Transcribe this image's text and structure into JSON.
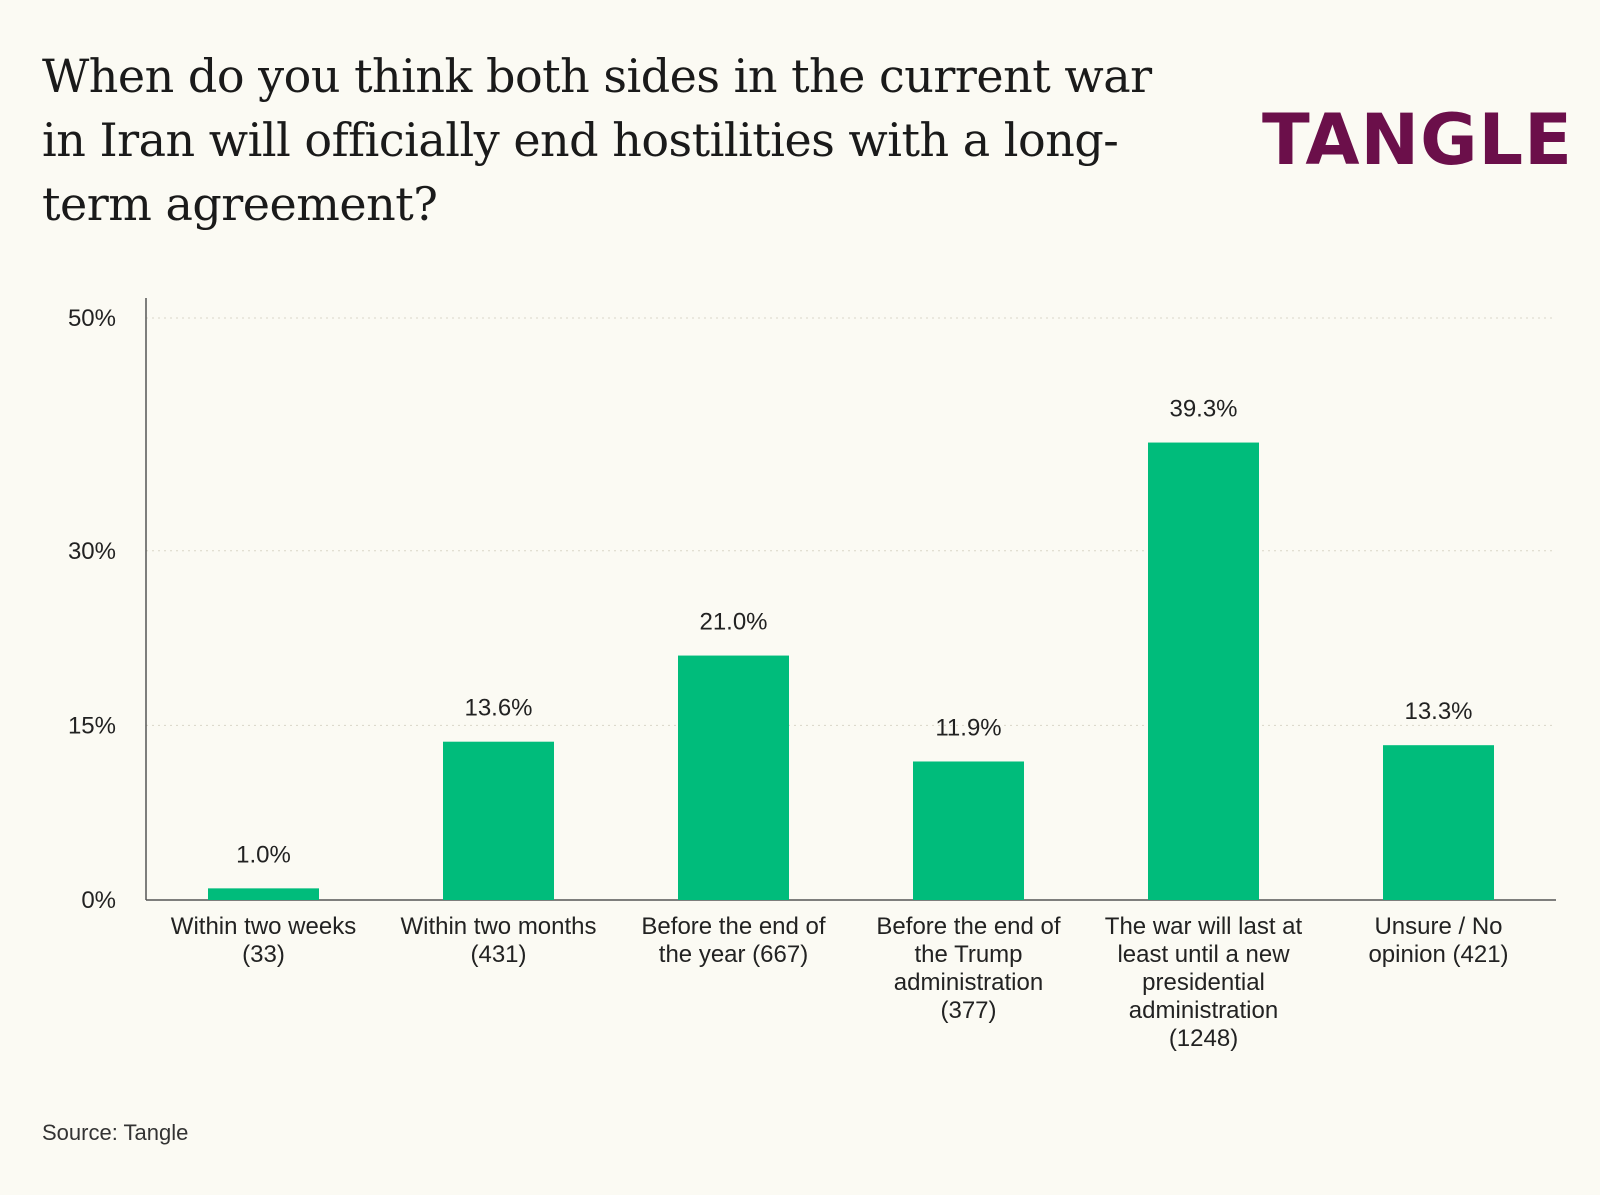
{
  "title": "When do you think both sides in the current war in Iran will officially end hostilities with a long-term agreement?",
  "brand": {
    "name": "TANGLE",
    "display": "Tə NGLE",
    "color": "#6b0f4a"
  },
  "source": "Source: Tangle",
  "colors": {
    "bar": "#00bc7b",
    "background": "#fbfaf3",
    "grid": "#d9d6c8",
    "axis": "#555555"
  },
  "chart_data": {
    "type": "bar",
    "title": "When do you think both sides in the current war in Iran will officially end hostilities with a long-term agreement?",
    "categories": [
      "Within two weeks (33)",
      "Within two months (431)",
      "Before the end of the year (667)",
      "Before the end of the Trump administration (377)",
      "The war will last at least until a new presidential administration (1248)",
      "Unsure / No opinion (421)"
    ],
    "category_lines": [
      [
        "Within two weeks",
        "(33)"
      ],
      [
        "Within two months",
        "(431)"
      ],
      [
        "Before the end of",
        "the year (667)"
      ],
      [
        "Before the end of",
        "the Trump",
        "administration",
        "(377)"
      ],
      [
        "The war will last at",
        "least until a new",
        "presidential",
        "administration",
        "(1248)"
      ],
      [
        "Unsure / No",
        "opinion (421)"
      ]
    ],
    "values": [
      1.0,
      13.6,
      21.0,
      11.9,
      39.3,
      13.3
    ],
    "value_labels": [
      "1.0%",
      "13.6%",
      "21.0%",
      "11.9%",
      "39.3%",
      "13.3%"
    ],
    "yticks": [
      0,
      15,
      30,
      50
    ],
    "ytick_labels": [
      "0%",
      "15%",
      "30%",
      "50%"
    ],
    "ylim": [
      0,
      50
    ],
    "xlabel": "",
    "ylabel": "",
    "grid": true,
    "legend": "none"
  }
}
